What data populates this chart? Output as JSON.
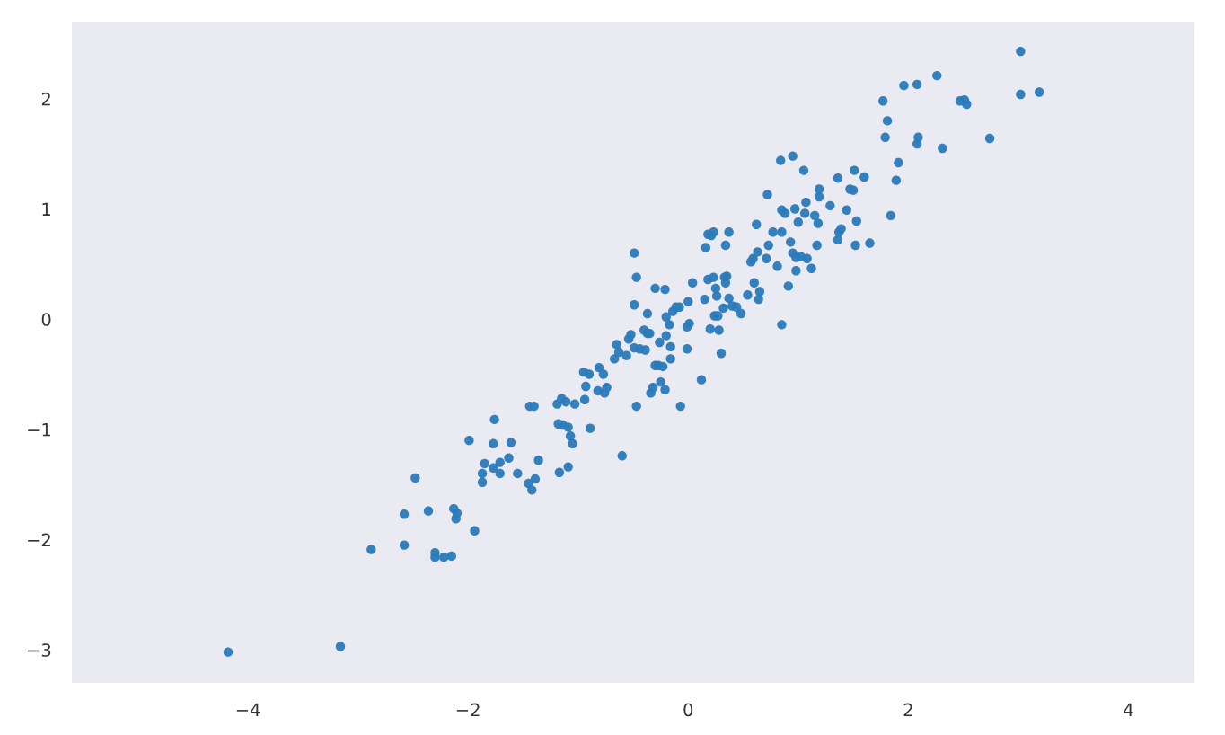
{
  "chart_data": {
    "type": "scatter",
    "color": "#2a7ab9",
    "marker": "circle",
    "grid": false,
    "xlim": [
      -5.6,
      4.6
    ],
    "ylim": [
      -3.3,
      2.7
    ],
    "xticks": [
      {
        "value": -4,
        "label": "−4"
      },
      {
        "value": -2,
        "label": "−2"
      },
      0,
      2,
      4
    ],
    "yticks": [
      {
        "value": -3,
        "label": "−3"
      },
      {
        "value": -2,
        "label": "−2"
      },
      {
        "value": -1,
        "label": "−1"
      },
      0,
      1,
      2
    ],
    "x": [
      -4.18,
      -3.16,
      -2.88,
      -2.58,
      -2.58,
      -2.48,
      -2.36,
      -2.3,
      -2.3,
      -2.22,
      -2.15,
      -2.13,
      -2.11,
      -2.1,
      -1.94,
      -1.99,
      -1.87,
      -1.87,
      -1.85,
      -1.77,
      -1.76,
      -1.77,
      -1.71,
      -1.71,
      -1.63,
      -1.61,
      -1.55,
      -1.45,
      -1.42,
      -1.39,
      -1.36,
      -1.44,
      -1.4,
      -1.19,
      -1.15,
      -1.11,
      -1.03,
      -1.18,
      -1.14,
      -1.09,
      -1.07,
      -1.05,
      -1.17,
      -1.09,
      -0.89,
      -0.95,
      -0.9,
      -0.93,
      -0.94,
      -0.81,
      -0.77,
      -0.82,
      -0.74,
      -0.76,
      -0.67,
      -0.65,
      -0.63,
      -0.6,
      -0.56,
      -0.54,
      -0.52,
      -0.49,
      -0.49,
      -0.47,
      -0.49,
      -0.47,
      -0.44,
      -0.4,
      -0.39,
      -0.37,
      -0.37,
      -0.35,
      -0.34,
      -0.32,
      -0.3,
      -0.3,
      -0.26,
      -0.27,
      -0.25,
      -0.23,
      -0.21,
      -0.21,
      -0.2,
      -0.2,
      -0.17,
      -0.16,
      -0.16,
      -0.14,
      -0.11,
      -0.08,
      -0.07,
      -0.01,
      -0.01,
      0.01,
      0.0,
      0.04,
      0.12,
      0.15,
      0.16,
      0.18,
      0.18,
      0.2,
      0.21,
      0.23,
      0.23,
      0.24,
      0.25,
      0.26,
      0.27,
      0.28,
      0.3,
      0.32,
      0.33,
      0.34,
      0.34,
      0.35,
      0.37,
      0.37,
      0.4,
      0.44,
      0.48,
      0.54,
      0.57,
      0.59,
      0.6,
      0.62,
      0.63,
      0.64,
      0.65,
      0.71,
      0.72,
      0.73,
      0.77,
      0.81,
      0.84,
      0.85,
      0.85,
      0.85,
      0.88,
      0.91,
      0.93,
      0.95,
      0.95,
      0.97,
      0.98,
      0.98,
      1.0,
      1.02,
      1.05,
      1.06,
      1.07,
      1.08,
      1.12,
      1.15,
      1.17,
      1.18,
      1.19,
      1.19,
      1.29,
      1.36,
      1.36,
      1.37,
      1.39,
      1.44,
      1.47,
      1.5,
      1.51,
      1.52,
      1.53,
      1.6,
      1.65,
      1.77,
      1.79,
      1.81,
      1.84,
      1.89,
      1.91,
      1.96,
      2.08,
      2.08,
      2.09,
      2.26,
      2.31,
      2.47,
      2.51,
      2.53,
      2.74,
      3.02,
      3.02,
      3.19
    ],
    "values": [
      -3.02,
      -2.97,
      -2.09,
      -2.05,
      -1.77,
      -1.44,
      -1.74,
      -2.12,
      -2.16,
      -2.16,
      -2.15,
      -1.72,
      -1.81,
      -1.76,
      -1.92,
      -1.1,
      -1.4,
      -1.48,
      -1.31,
      -1.13,
      -0.91,
      -1.35,
      -1.3,
      -1.4,
      -1.26,
      -1.12,
      -1.4,
      -1.49,
      -1.55,
      -1.45,
      -1.28,
      -0.79,
      -0.79,
      -0.77,
      -0.72,
      -0.75,
      -0.77,
      -0.95,
      -0.96,
      -0.98,
      -1.06,
      -1.13,
      -1.39,
      -1.34,
      -0.99,
      -0.48,
      -0.5,
      -0.61,
      -0.73,
      -0.44,
      -0.5,
      -0.65,
      -0.62,
      -0.67,
      -0.36,
      -0.23,
      -0.3,
      -1.24,
      -0.33,
      -0.18,
      -0.14,
      -0.26,
      0.6,
      0.38,
      0.13,
      -0.79,
      -0.27,
      -0.1,
      -0.28,
      0.05,
      -0.13,
      -0.13,
      -0.67,
      -0.62,
      0.28,
      -0.42,
      -0.21,
      -0.42,
      -0.57,
      -0.43,
      0.27,
      -0.64,
      0.02,
      -0.15,
      -0.05,
      -0.25,
      -0.36,
      0.07,
      0.11,
      0.11,
      -0.79,
      -0.27,
      -0.07,
      -0.04,
      0.16,
      0.33,
      -0.55,
      0.18,
      0.65,
      0.77,
      0.36,
      -0.09,
      0.76,
      0.38,
      0.79,
      0.03,
      0.28,
      0.21,
      0.03,
      -0.1,
      -0.31,
      0.1,
      0.38,
      0.67,
      0.33,
      0.39,
      0.79,
      0.19,
      0.12,
      0.11,
      0.05,
      0.22,
      0.52,
      0.55,
      0.33,
      0.86,
      0.61,
      0.18,
      0.25,
      0.55,
      1.13,
      0.67,
      0.79,
      0.48,
      1.44,
      0.79,
      0.99,
      -0.05,
      0.96,
      0.3,
      0.7,
      1.48,
      0.6,
      1.0,
      0.44,
      0.56,
      0.88,
      0.57,
      1.35,
      0.96,
      1.06,
      0.55,
      0.46,
      0.94,
      0.67,
      0.87,
      1.18,
      1.11,
      1.03,
      1.28,
      0.72,
      0.79,
      0.82,
      0.99,
      1.18,
      1.17,
      1.35,
      0.67,
      0.89,
      1.29,
      0.69,
      1.98,
      1.65,
      1.8,
      0.94,
      1.26,
      1.42,
      2.12,
      2.13,
      1.59,
      1.65,
      2.21,
      1.55,
      1.98,
      1.99,
      1.95,
      1.64,
      2.43,
      2.04,
      2.06
    ]
  }
}
